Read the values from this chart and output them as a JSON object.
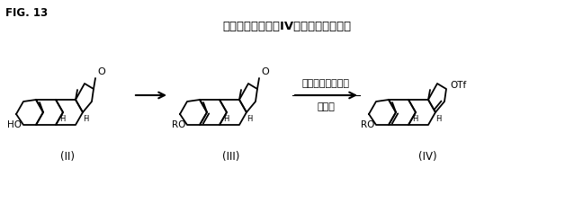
{
  "fig_label": "FIG. 13",
  "title": "スキーム９：式（IV）の化合物の生成",
  "label_II": "(II)",
  "label_III": "(III)",
  "label_IV": "(IV)",
  "arrow2_line1": "トリフレート化剤",
  "arrow2_line2": "強塩基",
  "bg_color": "#ffffff",
  "text_color": "#000000"
}
